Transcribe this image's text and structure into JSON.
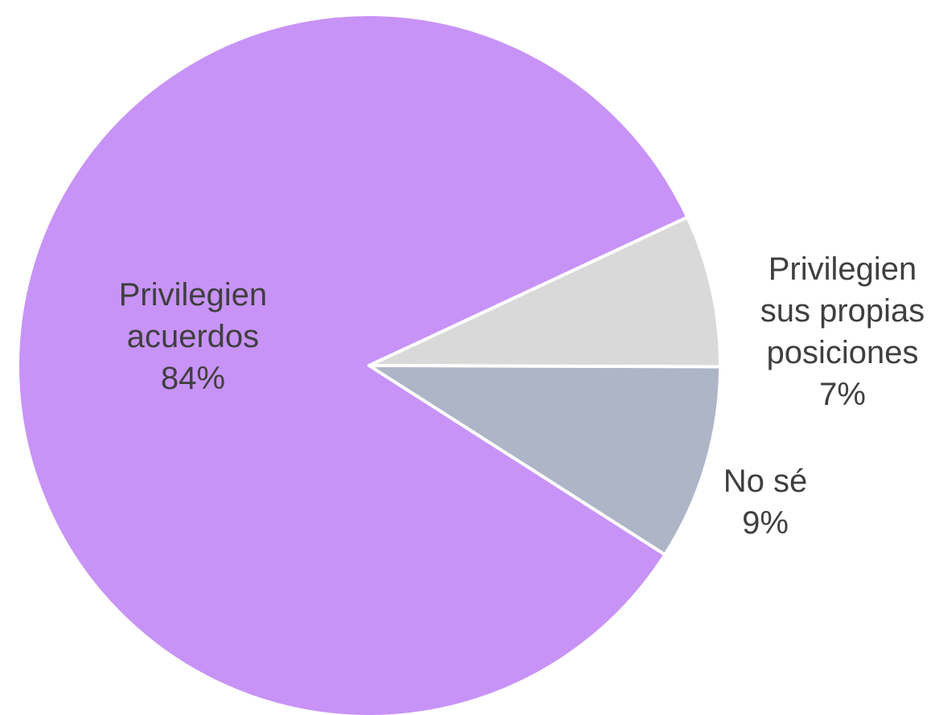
{
  "chart_data": {
    "type": "pie",
    "start_angle_deg": -25,
    "direction": "clockwise",
    "slices": [
      {
        "label_lines": [
          "Privilegien",
          "sus propias",
          "posiciones"
        ],
        "value_label": "7%",
        "value": 7,
        "color": "#d9d9d9"
      },
      {
        "label_lines": [
          "No sé"
        ],
        "value_label": "9%",
        "value": 9,
        "color": "#adb5c7"
      },
      {
        "label_lines": [
          "Privilegien",
          "acuerdos"
        ],
        "value_label": "84%",
        "value": 84,
        "color": "#c893f7"
      }
    ]
  }
}
